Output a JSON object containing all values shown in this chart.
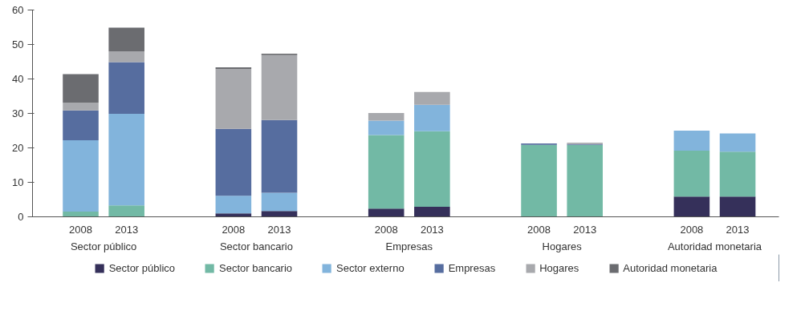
{
  "chart_data": {
    "type": "bar",
    "stacked": true,
    "categories": [
      "2008",
      "2013",
      "2008",
      "2013",
      "2008",
      "2013",
      "2008",
      "2013",
      "2008",
      "2013"
    ],
    "annotations": [
      "Sector público",
      "Sector bancario",
      "Empresas",
      "Hogares",
      "Autoridad monetaria"
    ],
    "series": [
      {
        "name": "Sector público",
        "color": "#35305a",
        "values": [
          0,
          0,
          1.0,
          1.7,
          2.4,
          2.9,
          0,
          0,
          5.9,
          5.9
        ]
      },
      {
        "name": "Sector bancario",
        "color": "#72b9a5",
        "values": [
          1.5,
          3.3,
          0,
          0,
          21.3,
          21.9,
          20.9,
          20.9,
          13.3,
          13.0
        ]
      },
      {
        "name": "Sector externo",
        "color": "#82b4dc",
        "values": [
          20.7,
          26.6,
          5.1,
          5.3,
          4.2,
          7.7,
          0,
          0,
          5.8,
          5.3
        ]
      },
      {
        "name": "Empresas",
        "color": "#566d9f",
        "values": [
          8.7,
          15.0,
          19.4,
          21.1,
          0,
          0,
          0.4,
          0.2,
          0,
          0
        ]
      },
      {
        "name": "Hogares",
        "color": "#a8a9ad",
        "values": [
          2.2,
          3.1,
          17.4,
          18.8,
          2.2,
          3.7,
          0,
          0.4,
          0,
          0
        ]
      },
      {
        "name": "Autoridad monetaria",
        "color": "#6b6c70",
        "values": [
          8.3,
          6.9,
          0.5,
          0.4,
          0,
          0,
          0,
          0,
          0,
          0
        ]
      }
    ],
    "ylim": [
      0,
      60
    ],
    "yticks": [
      0,
      10,
      20,
      30,
      40,
      50,
      60
    ],
    "grid": false,
    "legend": "bottom"
  }
}
